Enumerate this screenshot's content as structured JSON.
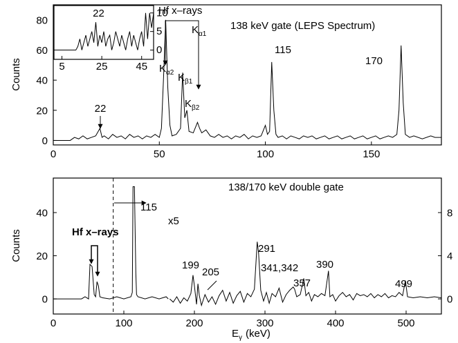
{
  "chart_data": [
    {
      "type": "line",
      "y_label": "Counts",
      "xlim": [
        0,
        183
      ],
      "ylim": [
        -3,
        90
      ],
      "xticks": [
        0,
        50,
        100,
        150
      ],
      "yticks": [
        0,
        20,
        40,
        60,
        80
      ],
      "yaxis_side": "left",
      "series": [
        {
          "color": "#000000",
          "x": [
            0,
            8,
            10,
            12,
            14,
            16,
            18,
            20,
            22,
            23,
            24,
            26,
            28,
            30,
            32,
            34,
            36,
            38,
            40,
            42,
            44,
            46,
            48,
            50,
            51,
            52,
            53,
            54,
            55,
            56,
            58,
            60,
            61,
            62,
            63,
            64,
            66,
            68,
            69,
            70,
            72,
            74,
            76,
            78,
            80,
            82,
            84,
            86,
            88,
            90,
            92,
            94,
            96,
            98,
            100,
            101,
            102,
            103,
            104,
            105,
            106,
            108,
            110,
            112,
            114,
            116,
            118,
            120,
            122,
            124,
            126,
            128,
            130,
            132,
            134,
            136,
            138,
            140,
            142,
            144,
            146,
            148,
            150,
            152,
            154,
            156,
            158,
            160,
            162,
            163,
            164,
            165,
            166,
            168,
            170,
            174,
            178,
            180,
            183
          ],
          "values": [
            0,
            0,
            2,
            1,
            3,
            1,
            2,
            3,
            8,
            2,
            3,
            1,
            4,
            2,
            3,
            1,
            4,
            2,
            3,
            1,
            3,
            2,
            4,
            2,
            8,
            42,
            80,
            35,
            10,
            3,
            4,
            8,
            45,
            15,
            20,
            6,
            5,
            12,
            8,
            5,
            7,
            3,
            2,
            4,
            2,
            3,
            1,
            3,
            2,
            4,
            1,
            3,
            2,
            3,
            10,
            4,
            6,
            52,
            20,
            4,
            2,
            3,
            1,
            3,
            2,
            1,
            3,
            2,
            3,
            1,
            2,
            3,
            1,
            2,
            3,
            1,
            2,
            3,
            1,
            2,
            3,
            1,
            2,
            3,
            1,
            2,
            3,
            2,
            4,
            20,
            63,
            25,
            4,
            2,
            3,
            1,
            3,
            2,
            2
          ]
        }
      ],
      "annotations": [
        {
          "text": "138 keV gate (LEPS Spectrum)"
        },
        {
          "text": "Hf x–rays"
        },
        {
          "text": "K",
          "sub": "α1"
        },
        {
          "text": "K",
          "sub": "α2"
        },
        {
          "text": "K",
          "sub": "β1"
        },
        {
          "text": "K",
          "sub": "β2"
        },
        {
          "text": "115"
        },
        {
          "text": "170"
        },
        {
          "text": "22"
        }
      ]
    },
    {
      "type": "line",
      "xlim": [
        1,
        51
      ],
      "ylim": [
        -2.5,
        12
      ],
      "xticks": [
        5,
        25,
        45
      ],
      "yticks": [
        0,
        5,
        10
      ],
      "yaxis_side": "right",
      "series": [
        {
          "color": "#000000",
          "x": [
            1,
            12,
            13,
            14,
            15,
            16,
            17,
            18,
            19,
            20,
            21,
            22,
            23,
            24,
            25,
            26,
            27,
            28,
            29,
            30,
            31,
            32,
            33,
            34,
            35,
            36,
            37,
            38,
            39,
            40,
            41,
            42,
            43,
            44,
            45,
            46,
            47,
            48,
            49,
            50,
            51
          ],
          "values": [
            0,
            0,
            1,
            3,
            0,
            2,
            4,
            1,
            3,
            5,
            2,
            7.5,
            1,
            4,
            2,
            5,
            1,
            3,
            4,
            0,
            2,
            5,
            3,
            1,
            4,
            2,
            0,
            3,
            5,
            1,
            4,
            2,
            0,
            3,
            5,
            1,
            10,
            3,
            10,
            6,
            10
          ]
        }
      ],
      "annotations": [
        {
          "text": "22"
        }
      ]
    },
    {
      "type": "line",
      "y_label": "Counts",
      "x_label": "E",
      "x_label_sub": "γ",
      "x_label_unit": "(keV)",
      "xlim": [
        0,
        550
      ],
      "ylim": [
        -7,
        56
      ],
      "y2lim": [
        -1.4,
        11.2
      ],
      "xticks": [
        0,
        100,
        200,
        300,
        400,
        500
      ],
      "yticks": [
        0,
        20,
        40
      ],
      "y2ticks": [
        0,
        4,
        8
      ],
      "yaxis_side": "left",
      "divider_x": 85,
      "series": [
        {
          "color": "#000000",
          "x": [
            0,
            40,
            45,
            50,
            52,
            55,
            58,
            60,
            62,
            64,
            66,
            70,
            80,
            90,
            100,
            110,
            112,
            113,
            115,
            117,
            118,
            120,
            130,
            140,
            150,
            160,
            163
          ],
          "values": [
            0,
            0,
            1,
            0,
            16,
            15,
            2,
            1,
            8,
            6,
            1,
            0.5,
            0,
            1,
            0,
            1,
            3,
            52,
            52,
            12,
            2,
            1,
            0,
            1,
            0,
            1,
            0
          ]
        },
        {
          "color": "#000000",
          "axis": "y2",
          "x": [
            165,
            170,
            175,
            180,
            185,
            190,
            195,
            198,
            200,
            203,
            205,
            207,
            210,
            215,
            220,
            225,
            230,
            235,
            240,
            245,
            250,
            255,
            260,
            265,
            270,
            275,
            280,
            285,
            289,
            291,
            294,
            298,
            302,
            306,
            310,
            315,
            320,
            325,
            330,
            335,
            340,
            342,
            345,
            350,
            355,
            358,
            362,
            366,
            370,
            375,
            380,
            385,
            390,
            392,
            396,
            400,
            405,
            410,
            415,
            420,
            425,
            430,
            435,
            440,
            445,
            450,
            455,
            460,
            465,
            470,
            475,
            480,
            485,
            490,
            495,
            499,
            502,
            510,
            520,
            530,
            540,
            550
          ],
          "values": [
            0,
            -0.3,
            0.2,
            -0.4,
            0.1,
            -0.2,
            0.5,
            2.2,
            1.2,
            -0.5,
            1.4,
            0.3,
            -0.6,
            0.4,
            -0.3,
            0.2,
            -0.5,
            0.3,
            0.8,
            -0.2,
            0.6,
            -0.4,
            0.3,
            0.7,
            -0.3,
            0.5,
            0.2,
            0.9,
            5.3,
            4.2,
            0.8,
            -0.2,
            0.6,
            -0.4,
            0.5,
            0.2,
            1.0,
            -0.3,
            0.4,
            0.8,
            1.1,
            0.9,
            0.2,
            0.4,
            1.9,
            0.3,
            0.6,
            -0.2,
            0.4,
            0.2,
            0.5,
            0.3,
            2.6,
            0.2,
            0.4,
            -0.2,
            0.3,
            0.6,
            0.2,
            0.4,
            -0.1,
            0.5,
            0.3,
            0.4,
            0.2,
            0.5,
            0.1,
            0.4,
            0.2,
            0.5,
            0.1,
            0.3,
            0.2,
            0.6,
            0.3,
            1.7,
            0.2,
            0.1,
            0.2,
            0.1,
            0.2,
            0.1
          ]
        }
      ],
      "annotations": [
        {
          "text": "138/170 keV double gate"
        },
        {
          "text": "Hf x–rays"
        },
        {
          "text": "115"
        },
        {
          "text": "x5"
        },
        {
          "text": "199"
        },
        {
          "text": "205"
        },
        {
          "text": "291"
        },
        {
          "text": "341,342"
        },
        {
          "text": "357"
        },
        {
          "text": "390"
        },
        {
          "text": "499"
        }
      ]
    }
  ]
}
